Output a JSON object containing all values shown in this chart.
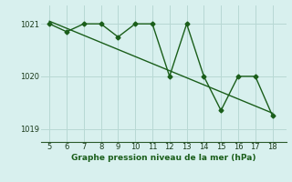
{
  "x": [
    5,
    6,
    7,
    8,
    9,
    10,
    11,
    12,
    13,
    14,
    15,
    16,
    17,
    18
  ],
  "y": [
    1021.0,
    1020.85,
    1021.0,
    1021.0,
    1020.75,
    1021.0,
    1021.0,
    1020.0,
    1021.0,
    1020.0,
    1019.35,
    1020.0,
    1020.0,
    1019.25
  ],
  "trend_x": [
    5,
    18
  ],
  "trend_y": [
    1021.05,
    1019.3
  ],
  "line_color": "#1a5e1a",
  "bg_color": "#d8f0ee",
  "grid_color": "#b8d8d4",
  "xlabel": "Graphe pression niveau de la mer (hPa)",
  "xlim": [
    4.5,
    18.8
  ],
  "ylim": [
    1018.75,
    1021.35
  ],
  "yticks": [
    1019,
    1020,
    1021
  ],
  "xticks": [
    5,
    6,
    7,
    8,
    9,
    10,
    11,
    12,
    13,
    14,
    15,
    16,
    17,
    18
  ],
  "marker": "D",
  "markersize": 2.5,
  "linewidth": 1.0,
  "tick_fontsize": 6.0,
  "xlabel_fontsize": 6.5
}
